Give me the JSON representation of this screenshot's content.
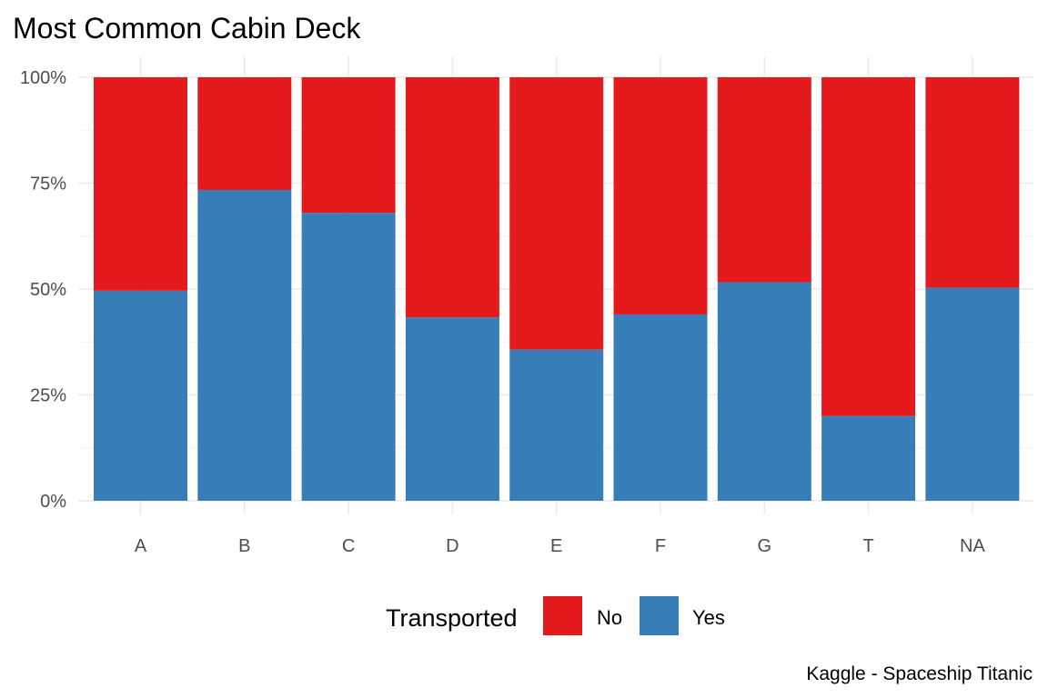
{
  "chart_data": {
    "type": "bar",
    "stacked": "fill",
    "title": "Most Common Cabin Deck",
    "xlabel": "",
    "ylabel": "",
    "categories": [
      "A",
      "B",
      "C",
      "D",
      "E",
      "F",
      "G",
      "T",
      "NA"
    ],
    "series": [
      {
        "name": "Yes",
        "color": "#377eb8",
        "values": [
          0.496,
          0.734,
          0.68,
          0.433,
          0.357,
          0.44,
          0.516,
          0.2,
          0.503
        ]
      },
      {
        "name": "No",
        "color": "#e41a1c",
        "values": [
          0.504,
          0.266,
          0.32,
          0.567,
          0.643,
          0.56,
          0.484,
          0.8,
          0.497
        ]
      }
    ],
    "ylim": [
      0,
      1
    ],
    "yticks": [
      0,
      0.25,
      0.5,
      0.75,
      1
    ],
    "ytick_labels": [
      "0%",
      "25%",
      "50%",
      "75%",
      "100%"
    ],
    "grid": true,
    "legend": {
      "title": "Transported",
      "position": "bottom",
      "entries": [
        {
          "label": "No",
          "color": "#e41a1c"
        },
        {
          "label": "Yes",
          "color": "#377eb8"
        }
      ]
    },
    "caption": "Kaggle - Spaceship Titanic"
  }
}
